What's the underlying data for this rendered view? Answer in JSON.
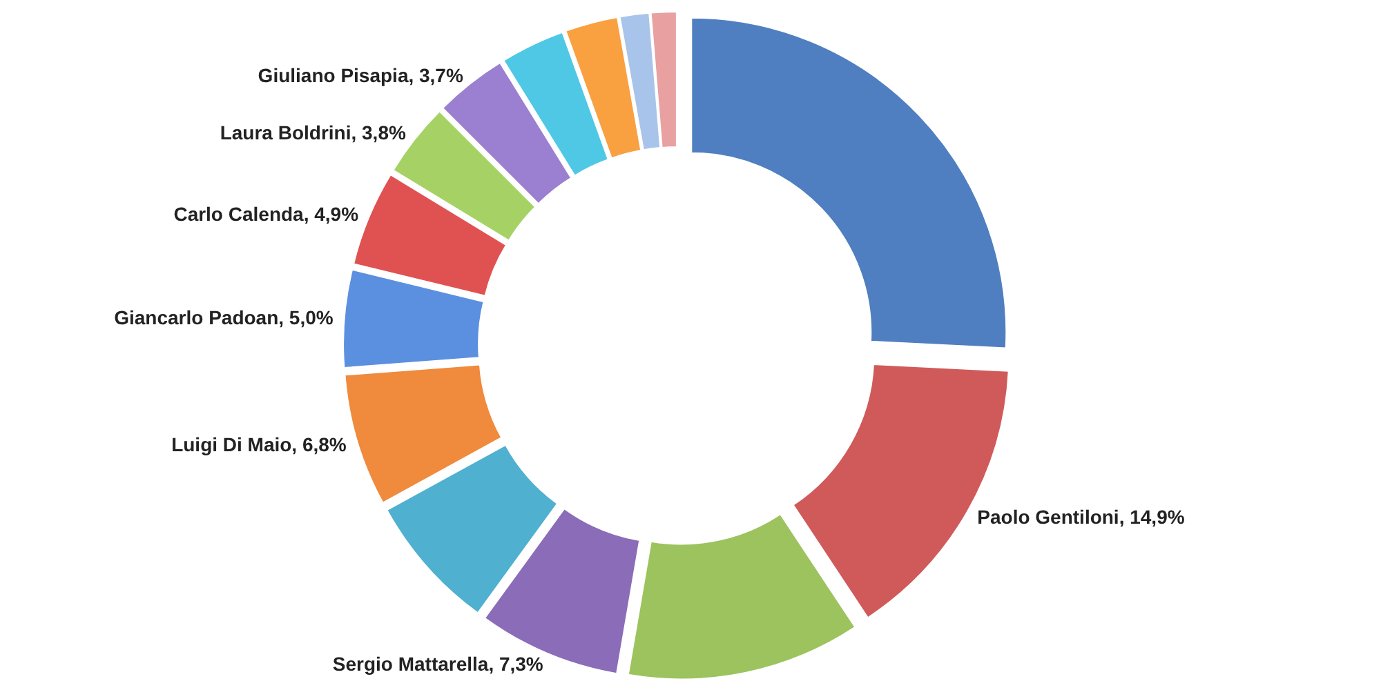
{
  "chart_data": {
    "type": "donut",
    "categories": [
      null,
      "Paolo Gentiloni",
      null,
      "Sergio Mattarella",
      null,
      "Luigi Di Maio",
      "Giancarlo Padoan",
      "Carlo Calenda",
      "Laura Boldrini",
      "Giuliano Pisapia",
      null,
      null,
      null,
      null
    ],
    "values": [
      25.8,
      14.9,
      12.0,
      7.3,
      7.0,
      6.8,
      5.0,
      4.9,
      3.8,
      3.7,
      3.3,
      2.7,
      1.5,
      1.3
    ],
    "value_labels": [
      null,
      "14,9%",
      null,
      "7,3%",
      null,
      "6,8%",
      "5,0%",
      "4,9%",
      "3,8%",
      "3,7%",
      null,
      null,
      null,
      null
    ],
    "colors": [
      "#4f7fc0",
      "#d05a5a",
      "#9cc35e",
      "#8a6cb8",
      "#4fb0d0",
      "#f08a3c",
      "#5b8fe0",
      "#e05252",
      "#a6d265",
      "#9b7fd0",
      "#4fc8e6",
      "#f9a040",
      "#a9c4ea",
      "#e8a0a0"
    ]
  }
}
